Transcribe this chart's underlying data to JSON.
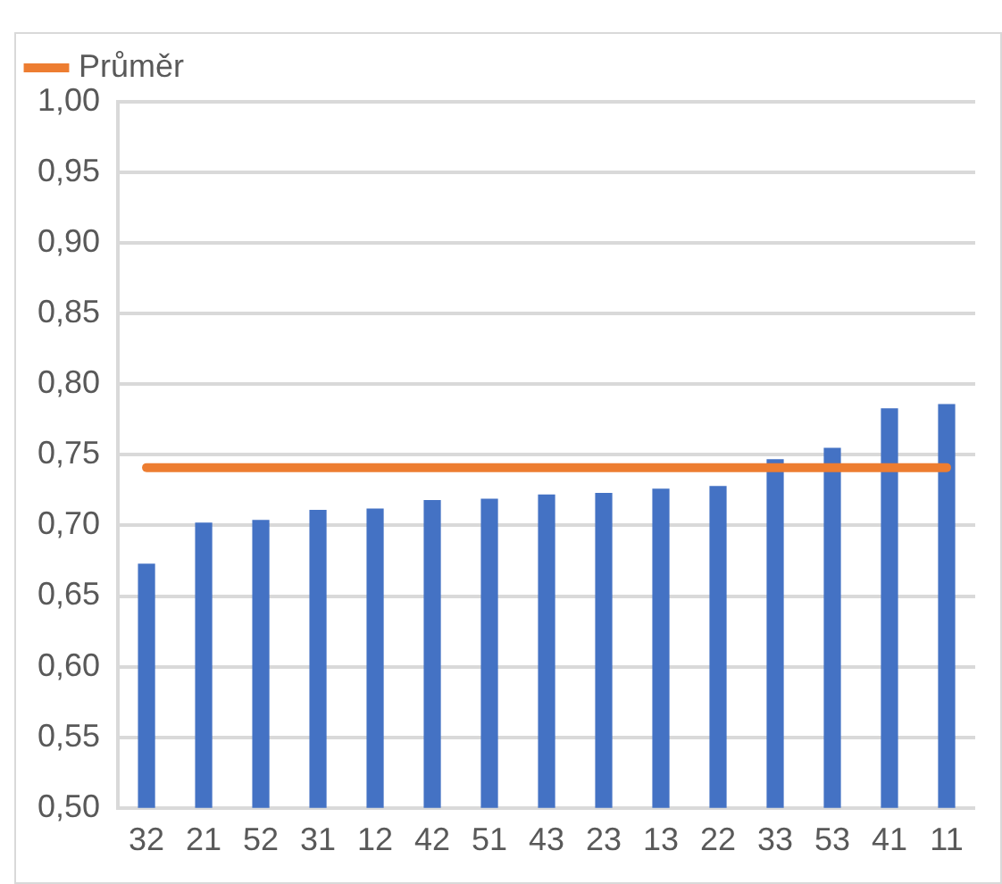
{
  "chart_data": {
    "type": "bar",
    "categories": [
      "32",
      "21",
      "52",
      "31",
      "12",
      "42",
      "51",
      "43",
      "23",
      "13",
      "22",
      "33",
      "53",
      "41",
      "11"
    ],
    "series": [
      {
        "color": "#4472c4",
        "values": [
          0.673,
          0.702,
          0.704,
          0.711,
          0.712,
          0.718,
          0.719,
          0.722,
          0.723,
          0.726,
          0.728,
          0.747,
          0.755,
          0.783,
          0.786
        ]
      },
      {
        "type": "line",
        "name": "Průměr",
        "color": "#ed7d31",
        "marker": "none",
        "values": [
          0.741,
          0.741,
          0.741,
          0.741,
          0.741,
          0.741,
          0.741,
          0.741,
          0.741,
          0.741,
          0.741,
          0.741,
          0.741,
          0.741,
          0.741
        ]
      }
    ],
    "ylim": [
      0.5,
      1.0
    ],
    "yticks": [
      {
        "value": 0.5,
        "label": "0,50"
      },
      {
        "value": 0.55,
        "label": "0,55"
      },
      {
        "value": 0.6,
        "label": "0,60"
      },
      {
        "value": 0.65,
        "label": "0,65"
      },
      {
        "value": 0.7,
        "label": "0,70"
      },
      {
        "value": 0.75,
        "label": "0,75"
      },
      {
        "value": 0.8,
        "label": "0,80"
      },
      {
        "value": 0.85,
        "label": "0,85"
      },
      {
        "value": 0.9,
        "label": "0,90"
      },
      {
        "value": 0.95,
        "label": "0,95"
      },
      {
        "value": 1.0,
        "label": "1,00"
      }
    ],
    "grid": "y",
    "legend": "top left"
  }
}
